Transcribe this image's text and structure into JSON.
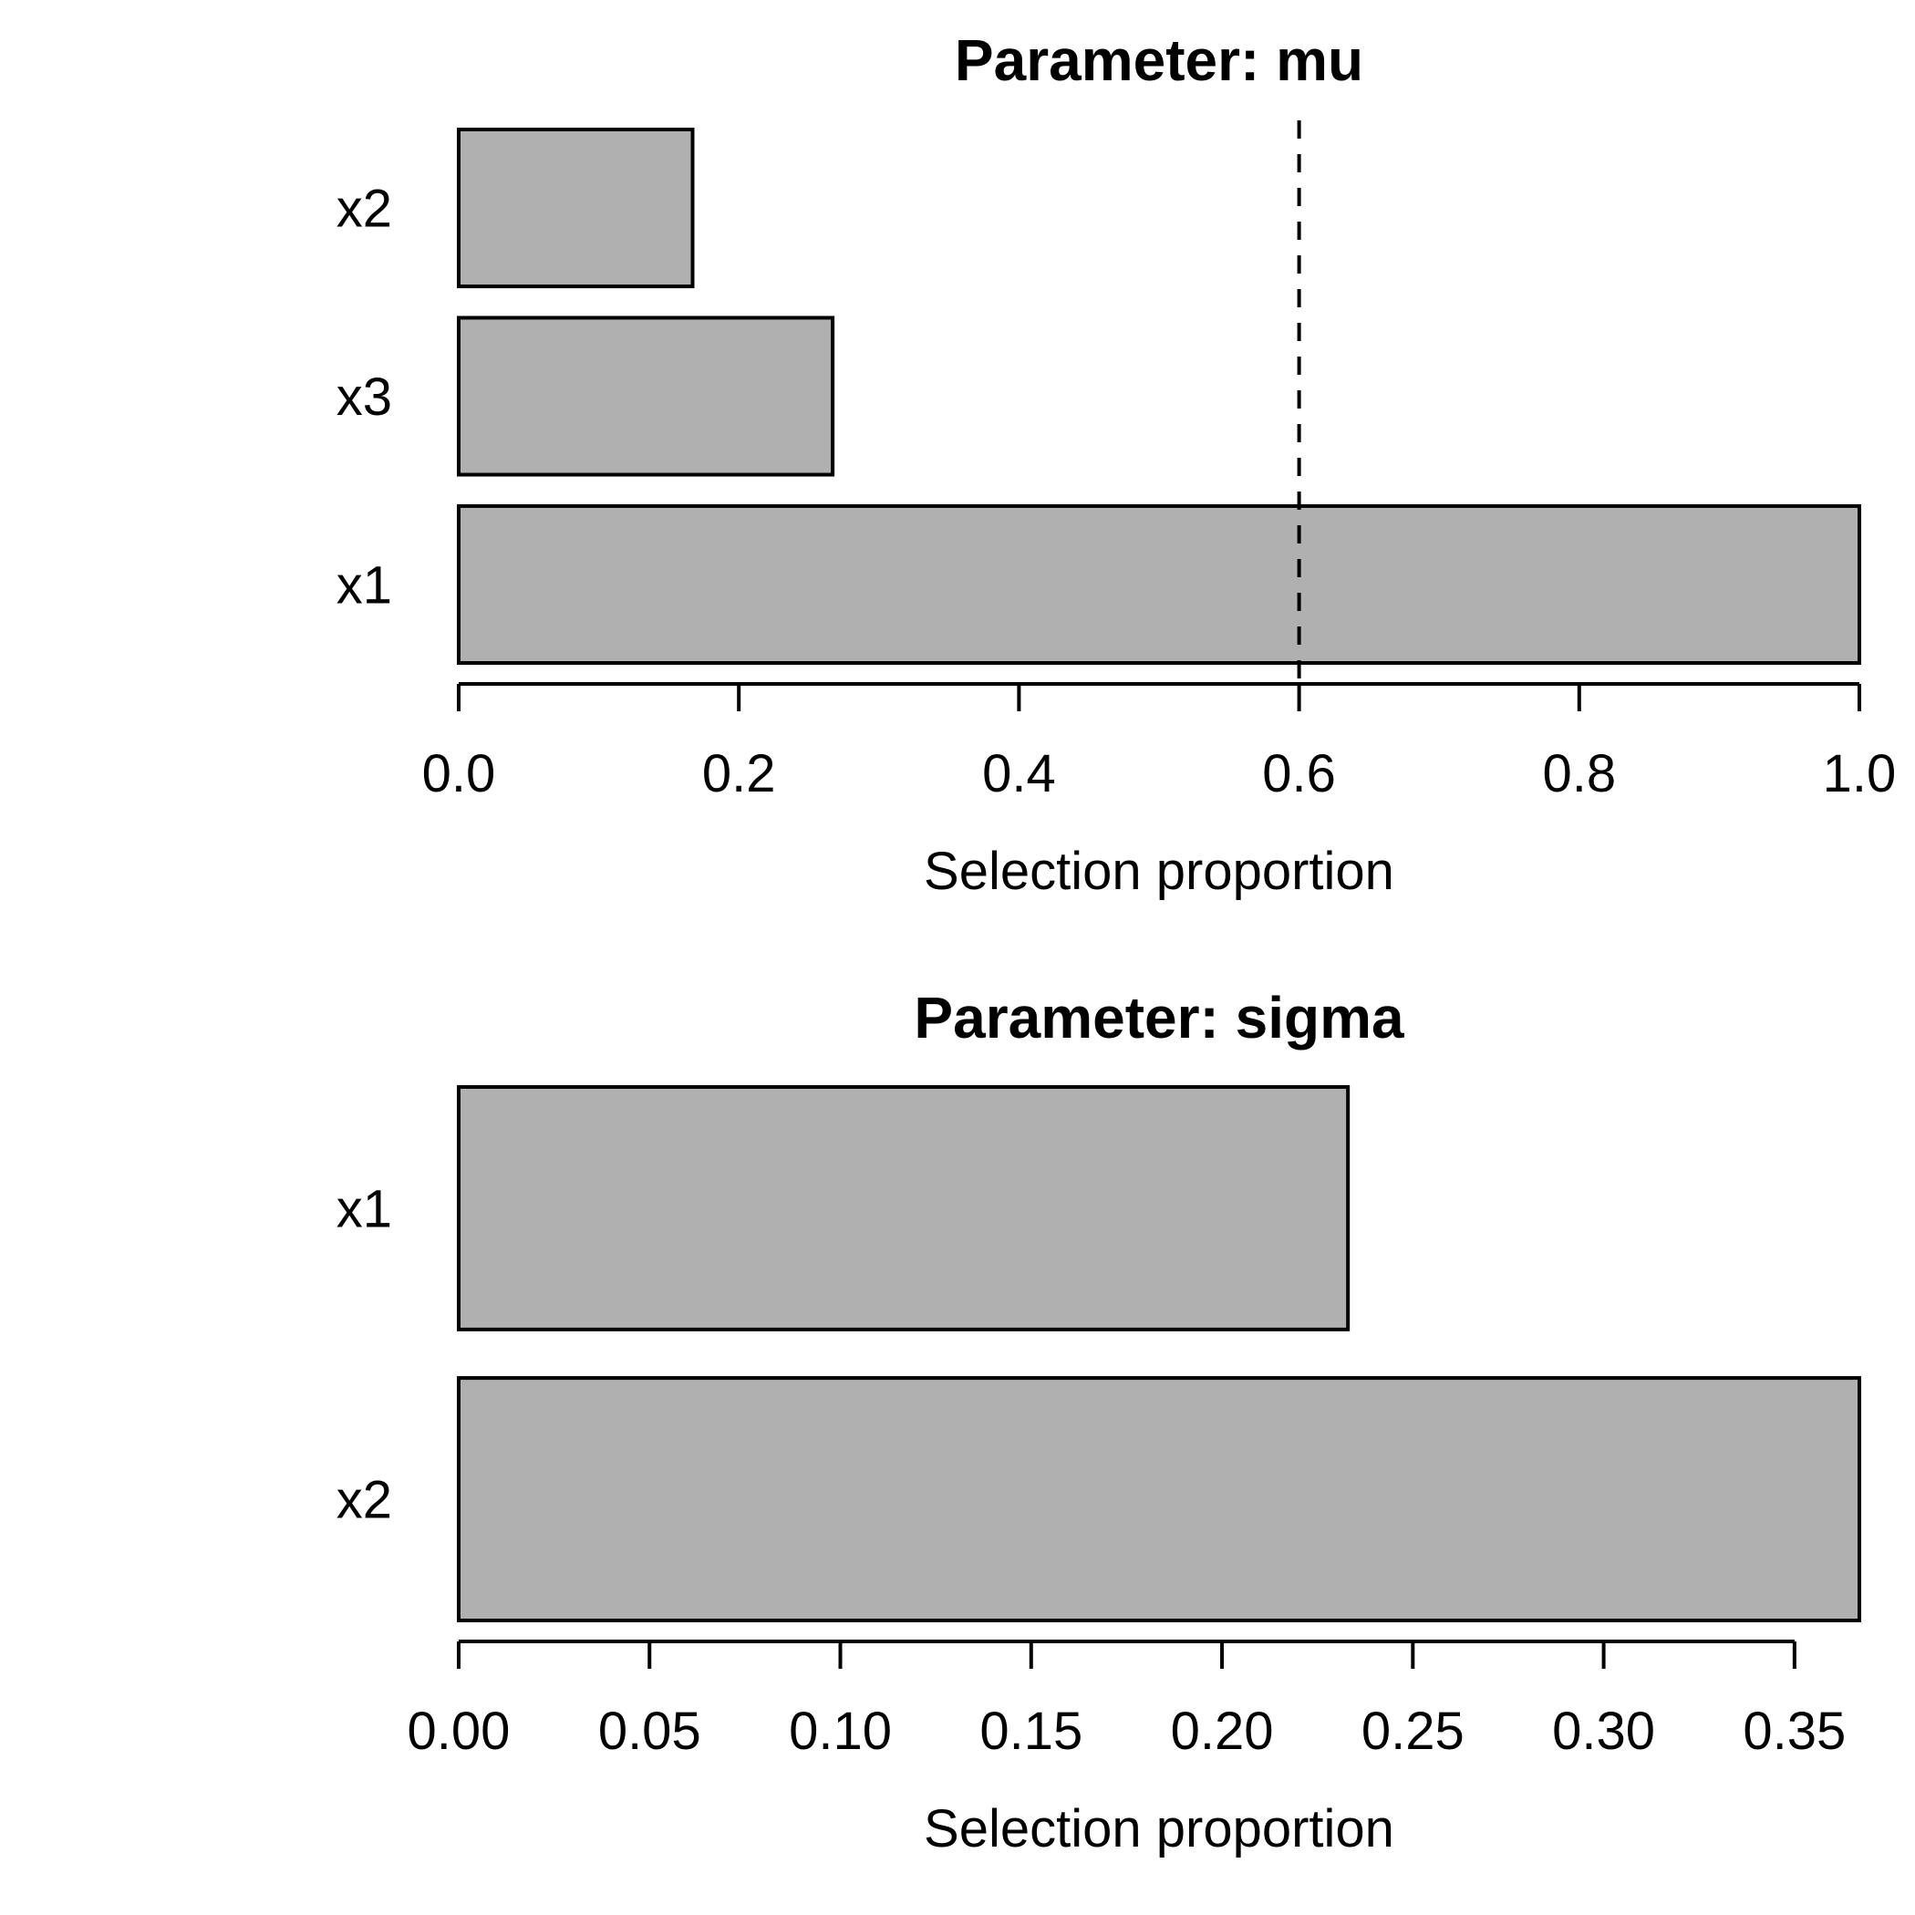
{
  "figure": {
    "background": "#FFFFFF",
    "text_color": "#000000"
  },
  "chart_data": [
    {
      "type": "bar",
      "orientation": "horizontal",
      "title": "Parameter: mu",
      "categories": [
        "x2",
        "x3",
        "x1"
      ],
      "values": [
        0.167,
        0.267,
        1.0
      ],
      "xlabel": "Selection proportion",
      "xlim": [
        0,
        1.0
      ],
      "tick_values": [
        0,
        0.2,
        0.4,
        0.6,
        0.8,
        1.0
      ],
      "tick_labels": [
        "0.0",
        "0.2",
        "0.4",
        "0.6",
        "0.8",
        "1.0"
      ],
      "reference_line": {
        "value": 0.6,
        "style": "dashed",
        "color": "#000000"
      },
      "bar_fill": "#B0B0B0",
      "bar_border": "#000000",
      "grid": false,
      "legend": "none"
    },
    {
      "type": "bar",
      "orientation": "horizontal",
      "title": "Parameter: sigma",
      "categories": [
        "x1",
        "x2"
      ],
      "values": [
        0.233,
        0.367
      ],
      "xlabel": "Selection proportion",
      "xlim": [
        0,
        0.367
      ],
      "tick_values": [
        0,
        0.05,
        0.1,
        0.15,
        0.2,
        0.25,
        0.3,
        0.35
      ],
      "tick_labels": [
        "0.00",
        "0.05",
        "0.10",
        "0.15",
        "0.20",
        "0.25",
        "0.30",
        "0.35"
      ],
      "reference_line": null,
      "bar_fill": "#B0B0B0",
      "bar_border": "#000000",
      "grid": false,
      "legend": "none"
    }
  ]
}
